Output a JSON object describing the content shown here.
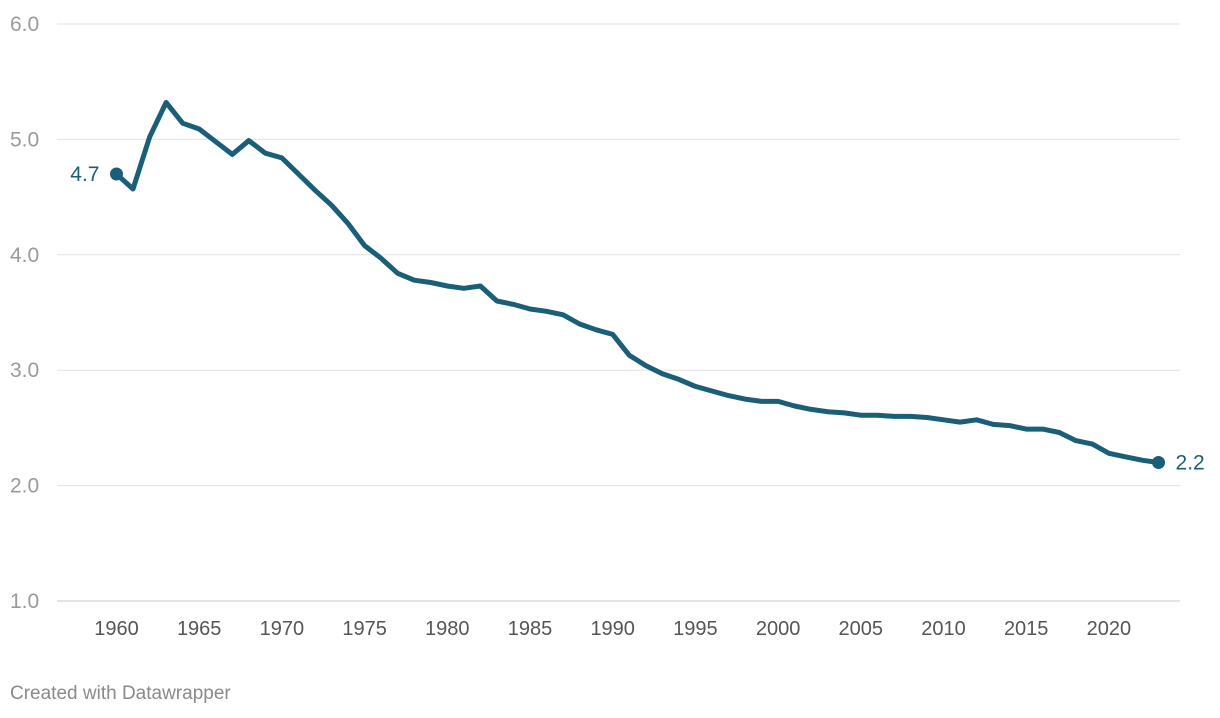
{
  "credit": "Created with Datawrapper",
  "colors": {
    "line": "#1a5e78",
    "grid": "#e2e2e2",
    "y_tick_text": "#9a9a9a",
    "x_tick_text": "#555555",
    "credit_text": "#8a8a8a"
  },
  "chart_data": {
    "type": "line",
    "title": "",
    "xlabel": "",
    "ylabel": "",
    "xlim": [
      1958,
      2024
    ],
    "ylim": [
      1.0,
      6.0
    ],
    "y_ticks": [
      "1.0",
      "2.0",
      "3.0",
      "4.0",
      "5.0",
      "6.0"
    ],
    "x_ticks": [
      "1960",
      "1965",
      "1970",
      "1975",
      "1980",
      "1985",
      "1990",
      "1995",
      "2000",
      "2005",
      "2010",
      "2015",
      "2020"
    ],
    "grid": true,
    "series": [
      {
        "x": [
          1960,
          1961,
          1962,
          1963,
          1964,
          1965,
          1966,
          1967,
          1968,
          1969,
          1970,
          1971,
          1972,
          1973,
          1974,
          1975,
          1976,
          1977,
          1978,
          1979,
          1980,
          1981,
          1982,
          1983,
          1984,
          1985,
          1986,
          1987,
          1988,
          1989,
          1990,
          1991,
          1992,
          1993,
          1994,
          1995,
          1996,
          1997,
          1998,
          1999,
          2000,
          2001,
          2002,
          2003,
          2004,
          2005,
          2006,
          2007,
          2008,
          2009,
          2010,
          2011,
          2012,
          2013,
          2014,
          2015,
          2016,
          2017,
          2018,
          2019,
          2020,
          2021,
          2022,
          2023
        ],
        "y": [
          4.7,
          4.57,
          5.02,
          5.32,
          5.14,
          5.09,
          4.98,
          4.87,
          4.99,
          4.88,
          4.84,
          4.7,
          4.56,
          4.43,
          4.27,
          4.08,
          3.97,
          3.84,
          3.78,
          3.76,
          3.73,
          3.71,
          3.73,
          3.6,
          3.57,
          3.53,
          3.51,
          3.48,
          3.4,
          3.35,
          3.31,
          3.13,
          3.04,
          2.97,
          2.92,
          2.86,
          2.82,
          2.78,
          2.75,
          2.73,
          2.73,
          2.69,
          2.66,
          2.64,
          2.63,
          2.61,
          2.61,
          2.6,
          2.6,
          2.59,
          2.57,
          2.55,
          2.57,
          2.53,
          2.52,
          2.49,
          2.49,
          2.46,
          2.39,
          2.36,
          2.28,
          2.25,
          2.22,
          2.2
        ]
      }
    ],
    "start_label": "4.7",
    "end_label": "2.2"
  }
}
